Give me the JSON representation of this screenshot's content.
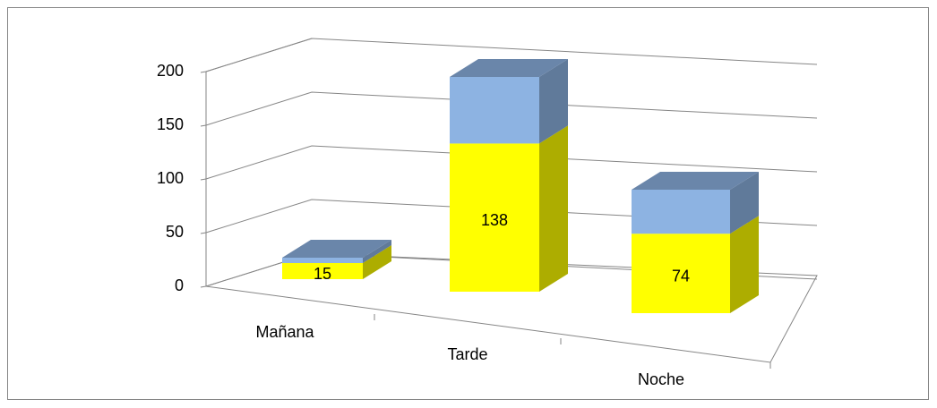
{
  "chart_data": {
    "type": "bar3d_stacked",
    "categories": [
      "Mañana",
      "Tarde",
      "Noche"
    ],
    "series": [
      {
        "color": "#ffff00",
        "values": [
          15,
          138,
          74
        ]
      },
      {
        "color": "#8db3e2",
        "values": [
          5,
          62,
          41
        ]
      }
    ],
    "ylim": [
      0,
      200
    ],
    "yticks": [
      0,
      50,
      100,
      150,
      200
    ],
    "grid": true
  }
}
